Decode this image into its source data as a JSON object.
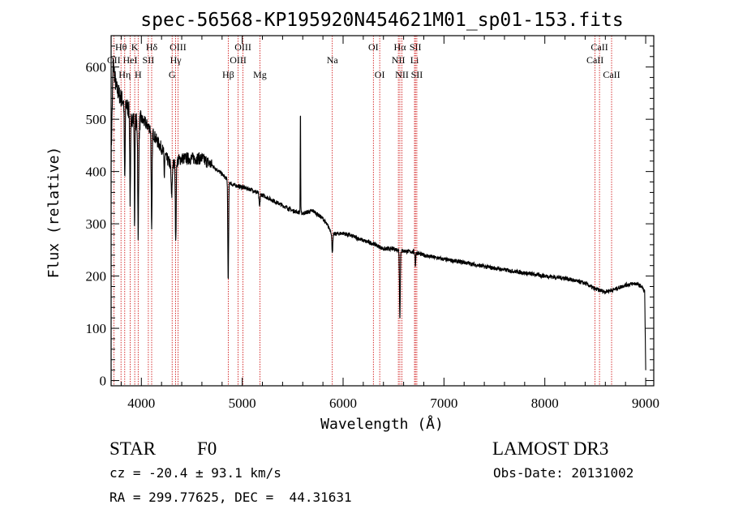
{
  "chart_data": {
    "type": "line",
    "title": "spec-56568-KP195920N454621M01_sp01-153.fits",
    "xlabel": "Wavelength (Å)",
    "ylabel": "Flux (relative)",
    "xlim": [
      3700,
      9080
    ],
    "ylim": [
      -10,
      660
    ],
    "xticks": [
      4000,
      5000,
      6000,
      7000,
      8000,
      9000
    ],
    "xtick_labels": [
      "4000",
      "5000",
      "6000",
      "7000",
      "8000",
      "9000"
    ],
    "yticks": [
      0,
      100,
      200,
      300,
      400,
      500,
      600
    ],
    "ytick_labels": [
      "0",
      "100",
      "200",
      "300",
      "400",
      "500",
      "600"
    ],
    "continuum": [
      [
        3700,
        420
      ],
      [
        3720,
        610
      ],
      [
        3750,
        560
      ],
      [
        3800,
        540
      ],
      [
        3850,
        530
      ],
      [
        3900,
        505
      ],
      [
        3950,
        495
      ],
      [
        4000,
        500
      ],
      [
        4050,
        490
      ],
      [
        4100,
        480
      ],
      [
        4150,
        460
      ],
      [
        4200,
        445
      ],
      [
        4250,
        425
      ],
      [
        4300,
        410
      ],
      [
        4350,
        420
      ],
      [
        4400,
        425
      ],
      [
        4500,
        425
      ],
      [
        4600,
        425
      ],
      [
        4700,
        412
      ],
      [
        4800,
        395
      ],
      [
        4900,
        375
      ],
      [
        5000,
        370
      ],
      [
        5100,
        365
      ],
      [
        5200,
        355
      ],
      [
        5300,
        345
      ],
      [
        5400,
        335
      ],
      [
        5500,
        325
      ],
      [
        5600,
        320
      ],
      [
        5700,
        325
      ],
      [
        5800,
        310
      ],
      [
        5900,
        280
      ],
      [
        6000,
        282
      ],
      [
        6100,
        276
      ],
      [
        6200,
        268
      ],
      [
        6300,
        262
      ],
      [
        6400,
        252
      ],
      [
        6500,
        252
      ],
      [
        6600,
        248
      ],
      [
        6700,
        246
      ],
      [
        6800,
        240
      ],
      [
        7000,
        232
      ],
      [
        7200,
        226
      ],
      [
        7400,
        218
      ],
      [
        7600,
        212
      ],
      [
        7800,
        206
      ],
      [
        8000,
        200
      ],
      [
        8200,
        196
      ],
      [
        8400,
        186
      ],
      [
        8500,
        175
      ],
      [
        8600,
        170
      ],
      [
        8700,
        175
      ],
      [
        8800,
        183
      ],
      [
        8900,
        186
      ],
      [
        8960,
        180
      ],
      [
        8990,
        170
      ],
      [
        9000,
        20
      ]
    ],
    "features": [
      {
        "center": 3835,
        "depth": 150,
        "width": 4
      },
      {
        "center": 3889,
        "depth": 170,
        "width": 4
      },
      {
        "center": 3933,
        "depth": 200,
        "width": 3
      },
      {
        "center": 3968,
        "depth": 150,
        "width": 3
      },
      {
        "center": 3970,
        "depth": 90,
        "width": 6
      },
      {
        "center": 4102,
        "depth": 200,
        "width": 4
      },
      {
        "center": 4227,
        "depth": 45,
        "width": 3
      },
      {
        "center": 4300,
        "depth": 60,
        "width": 5
      },
      {
        "center": 4341,
        "depth": 160,
        "width": 4
      },
      {
        "center": 4861,
        "depth": 195,
        "width": 4
      },
      {
        "center": 5172,
        "depth": 25,
        "width": 5
      },
      {
        "center": 5577,
        "depth": -210,
        "width": 2
      },
      {
        "center": 5893,
        "depth": 35,
        "width": 5
      },
      {
        "center": 6563,
        "depth": 130,
        "width": 4
      },
      {
        "center": 6717,
        "depth": 25,
        "width": 3
      }
    ],
    "line_markers": [
      {
        "label": "Hθ",
        "wave": 3798,
        "row": 0
      },
      {
        "label": "K",
        "wave": 3934,
        "row": 0
      },
      {
        "label": "Hδ",
        "wave": 4102,
        "row": 0
      },
      {
        "label": "OIII",
        "wave": 4363,
        "row": 0
      },
      {
        "label": "OIII",
        "wave": 5007,
        "row": 0
      },
      {
        "label": "OI",
        "wave": 6300,
        "row": 0
      },
      {
        "label": "Hα",
        "wave": 6563,
        "row": 0
      },
      {
        "label": "SII",
        "wave": 6717,
        "row": 0
      },
      {
        "label": "CaII",
        "wave": 8542,
        "row": 0
      },
      {
        "label": "OII",
        "wave": 3727,
        "row": 1
      },
      {
        "label": "HeI",
        "wave": 3889,
        "row": 1
      },
      {
        "label": "SII",
        "wave": 4069,
        "row": 1
      },
      {
        "label": "Hγ",
        "wave": 4340,
        "row": 1
      },
      {
        "label": "OIII",
        "wave": 4959,
        "row": 1
      },
      {
        "label": "Na",
        "wave": 5893,
        "row": 1
      },
      {
        "label": "NII",
        "wave": 6548,
        "row": 1
      },
      {
        "label": "Li",
        "wave": 6708,
        "row": 1
      },
      {
        "label": "CaII",
        "wave": 8498,
        "row": 1
      },
      {
        "label": "Hη",
        "wave": 3835,
        "row": 2
      },
      {
        "label": "H",
        "wave": 3968,
        "row": 2
      },
      {
        "label": "G",
        "wave": 4305,
        "row": 2
      },
      {
        "label": "Hβ",
        "wave": 4861,
        "row": 2
      },
      {
        "label": "Mg",
        "wave": 5175,
        "row": 2
      },
      {
        "label": "OI",
        "wave": 6363,
        "row": 2
      },
      {
        "label": "NII",
        "wave": 6583,
        "row": 2
      },
      {
        "label": "SII",
        "wave": 6731,
        "row": 2
      },
      {
        "label": "CaII",
        "wave": 8662,
        "row": 2
      }
    ]
  },
  "info": {
    "object_class": "STAR",
    "subclass": "F0",
    "survey": "LAMOST DR3",
    "cz": "cz = -20.4 ± 93.1 km/s",
    "obs_date": "Obs-Date: 20131002",
    "coords": "RA = 299.77625, DEC =  44.31631"
  },
  "colors": {
    "spectrum": "#000000",
    "marker": "#cc0000",
    "axis": "#000000"
  }
}
